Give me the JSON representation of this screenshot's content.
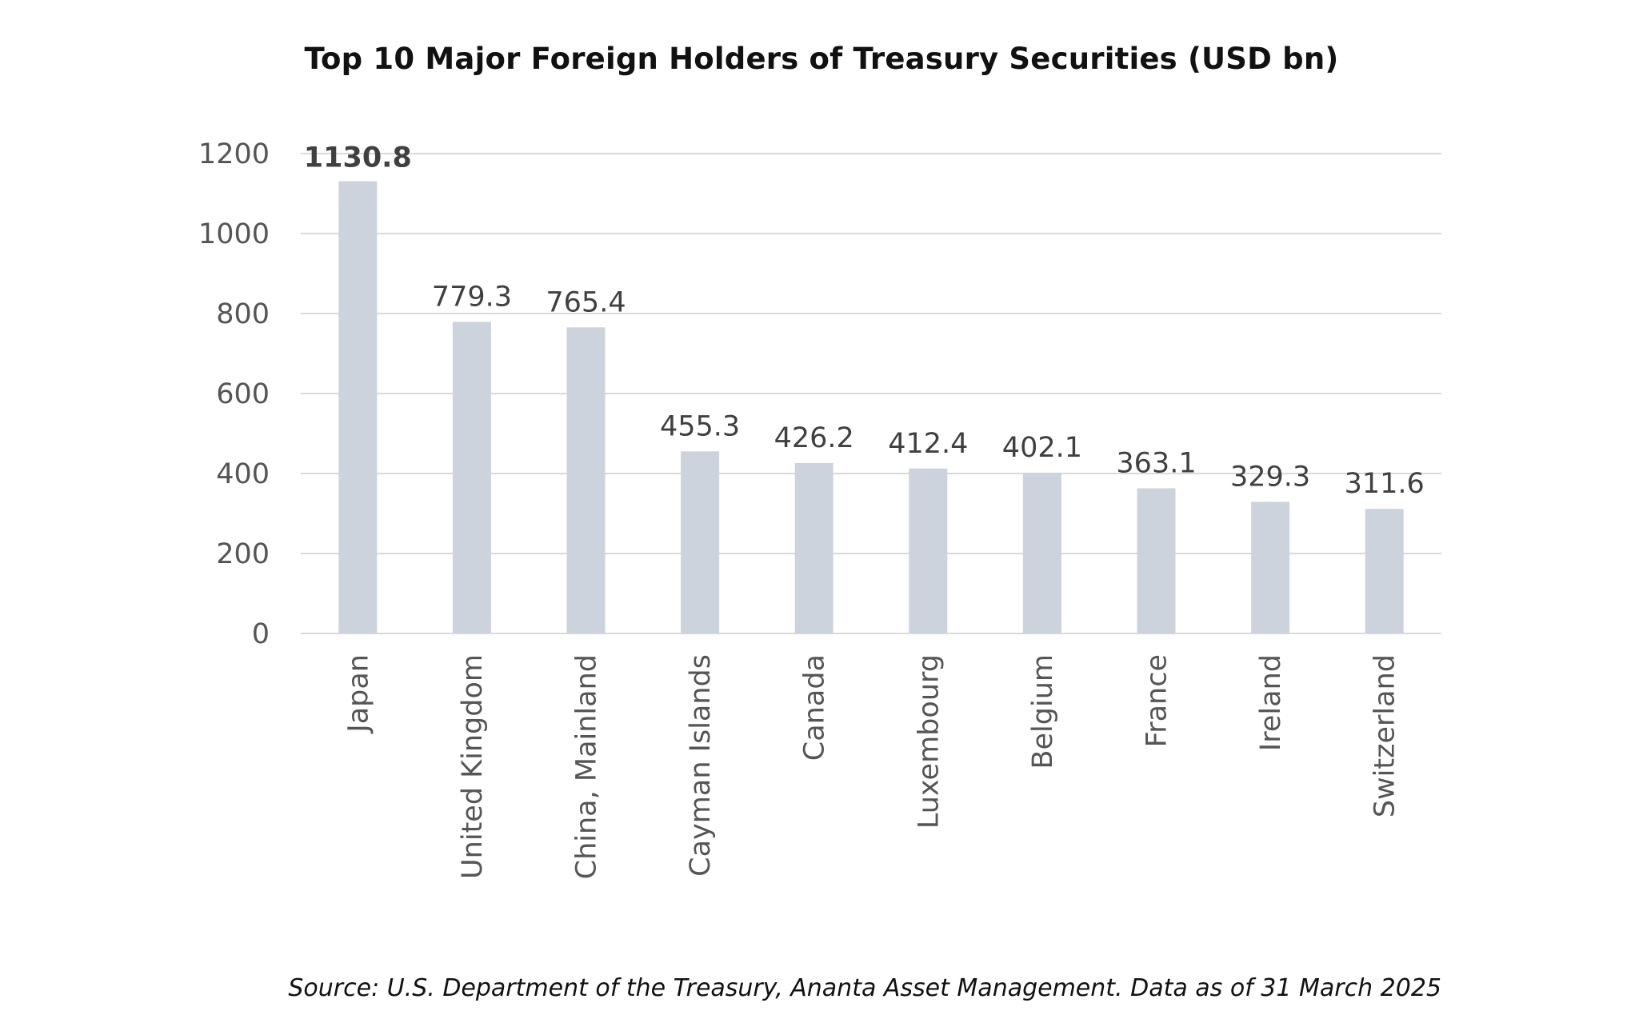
{
  "chart_data": {
    "type": "bar",
    "title": "Top 10 Major Foreign Holders of Treasury Securities (USD bn)",
    "categories": [
      "Japan",
      "United Kingdom",
      "China, Mainland",
      "Cayman Islands",
      "Canada",
      "Luxembourg",
      "Belgium",
      "France",
      "Ireland",
      "Switzerland"
    ],
    "values": [
      1130.8,
      779.3,
      765.4,
      455.3,
      426.2,
      412.4,
      402.1,
      363.1,
      329.3,
      311.6
    ],
    "data_labels": [
      "1130.8",
      "779.3",
      "765.4",
      "455.3",
      "426.2",
      "412.4",
      "402.1",
      "363.1",
      "329.3",
      "311.6"
    ],
    "yticks": [
      0,
      200,
      400,
      600,
      800,
      1000,
      1200
    ],
    "ylim": [
      0,
      1200
    ],
    "xlabel": "",
    "ylabel": "",
    "grid": true,
    "legend": "none",
    "bar_color": "#cdd3dc",
    "grid_color": "#d9d9d9",
    "label_color": "#404040"
  },
  "source_note": "Source: U.S. Department of the Treasury, Ananta Asset Management. Data as of 31 March 2025"
}
